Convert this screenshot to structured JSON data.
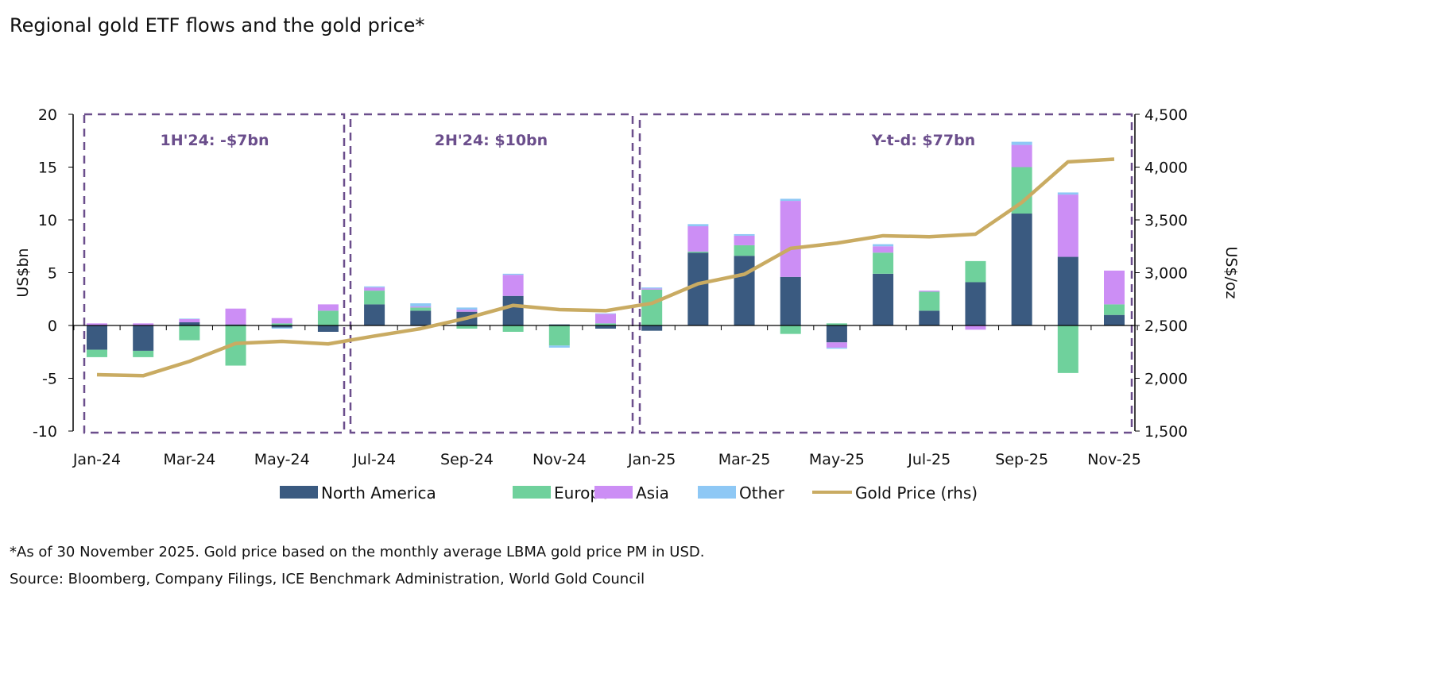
{
  "title": "Regional gold ETF flows and the gold price*",
  "footnote": "*As of 30 November 2025. Gold price based on the monthly average LBMA gold price PM in USD.",
  "source": "Source: Bloomberg, Company Filings, ICE Benchmark Administration, World Gold Council",
  "chart_data": {
    "type": "bar",
    "stacked": true,
    "categories": [
      "Jan-24",
      "Feb-24",
      "Mar-24",
      "Apr-24",
      "May-24",
      "Jun-24",
      "Jul-24",
      "Aug-24",
      "Sep-24",
      "Oct-24",
      "Nov-24",
      "Dec-24",
      "Jan-25",
      "Feb-25",
      "Mar-25",
      "Apr-25",
      "May-25",
      "Jun-25",
      "Jul-25",
      "Aug-25",
      "Sep-25",
      "Oct-25",
      "Nov-25"
    ],
    "x_tick_labels": [
      "Jan-24",
      "Mar-24",
      "May-24",
      "Jul-24",
      "Sep-24",
      "Nov-24",
      "Jan-25",
      "Mar-25",
      "May-25",
      "Jul-25",
      "Sep-25",
      "Nov-25"
    ],
    "ylabel": "US$bn",
    "ylim": [
      -10,
      20
    ],
    "yticks": [
      20,
      15,
      10,
      5,
      0,
      -5,
      -10
    ],
    "y2label": "US$/oz",
    "y2lim": [
      1500,
      4500
    ],
    "y2ticks": [
      "4,500",
      "4,000",
      "3,500",
      "3,000",
      "2,500",
      "2,000",
      "1,500"
    ],
    "series": [
      {
        "name": "North America",
        "color": "#3a5a80",
        "values": [
          -2.3,
          -2.4,
          0.3,
          0.1,
          -0.2,
          -0.6,
          2.0,
          1.4,
          1.3,
          2.8,
          0.1,
          -0.3,
          -0.5,
          6.9,
          6.6,
          4.6,
          -1.6,
          4.9,
          1.4,
          4.1,
          10.6,
          6.5,
          1.0
        ]
      },
      {
        "name": "Europe",
        "color": "#6fd19c",
        "values": [
          -0.7,
          -0.6,
          -1.4,
          -3.8,
          0.2,
          1.4,
          1.3,
          0.3,
          -0.3,
          -0.6,
          -1.9,
          0.2,
          3.4,
          0.1,
          1.0,
          -0.8,
          0.2,
          2.0,
          1.8,
          2.0,
          4.4,
          -4.5,
          1.0
        ]
      },
      {
        "name": "Asia",
        "color": "#cc8ef5",
        "values": [
          0.2,
          0.2,
          0.3,
          1.5,
          0.5,
          0.6,
          0.3,
          0.1,
          0.2,
          2.0,
          0.0,
          0.9,
          0.1,
          2.4,
          0.9,
          7.2,
          -0.5,
          0.6,
          0.1,
          -0.4,
          2.1,
          5.9,
          3.2
        ]
      },
      {
        "name": "Other",
        "color": "#8ec8f5",
        "values": [
          0,
          0,
          0.05,
          0,
          -0.1,
          0,
          0.1,
          0.3,
          0.2,
          0.1,
          -0.2,
          0.05,
          0.1,
          0.2,
          0.15,
          0.2,
          -0.1,
          0.2,
          0,
          0,
          0.3,
          0.2,
          0
        ]
      },
      {
        "name": "Gold Price (rhs)",
        "type": "line",
        "axis": "right",
        "color": "#c9ab62",
        "values": [
          2034,
          2024,
          2160,
          2330,
          2350,
          2325,
          2400,
          2470,
          2570,
          2690,
          2650,
          2640,
          2710,
          2895,
          2985,
          3230,
          3280,
          3350,
          3340,
          3365,
          3665,
          4050,
          4075
        ]
      }
    ],
    "annotations": [
      "1H'24: -$7bn",
      "2H'24: $10bn",
      "Y-t-d: $77bn"
    ],
    "annotation_color": "#6b4e8c",
    "legend_position": "bottom",
    "grid": false
  }
}
